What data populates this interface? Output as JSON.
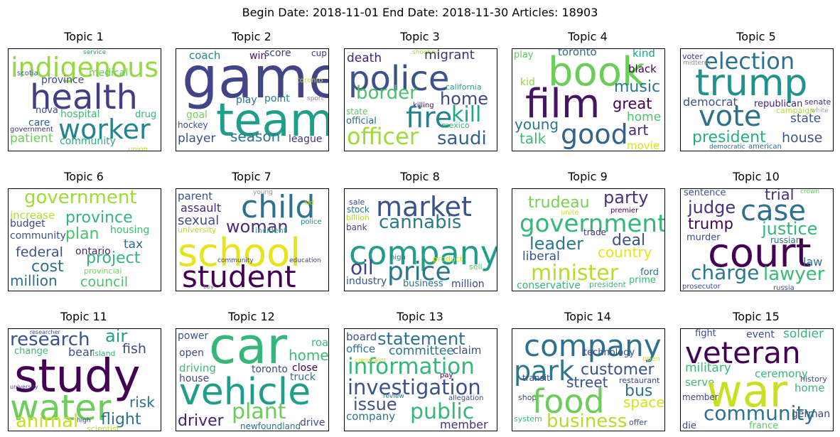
{
  "header": {
    "title": "Begin Date: 2018-11-01  End Date: 2018-11-30  Articles: 18903"
  },
  "topics": [
    {
      "title": "Topic 1",
      "words": [
        {
          "t": "service",
          "c": "#3b9a8a"
        },
        {
          "t": "indigenous",
          "c": "#95d840"
        },
        {
          "t": "scotia",
          "c": "#33638d"
        },
        {
          "t": "province",
          "c": "#3e4a89"
        },
        {
          "t": "medical",
          "c": "#6ccd5a"
        },
        {
          "t": "health",
          "c": "#433e85"
        },
        {
          "t": "nova",
          "c": "#3e4c8a"
        },
        {
          "t": "care",
          "c": "#34608d"
        },
        {
          "t": "hospital",
          "c": "#3fbc73"
        },
        {
          "t": "drug",
          "c": "#35b779"
        },
        {
          "t": "worker",
          "c": "#25858e"
        },
        {
          "t": "government",
          "c": "#46337f"
        },
        {
          "t": "patient",
          "c": "#6ccd5a"
        },
        {
          "t": "community",
          "c": "#27ad81"
        },
        {
          "t": "union",
          "c": "#b5de2b"
        }
      ]
    },
    {
      "title": "Topic 2",
      "words": [
        {
          "t": "coach",
          "c": "#25858e"
        },
        {
          "t": "win",
          "c": "#471365"
        },
        {
          "t": "score",
          "c": "#443983"
        },
        {
          "t": "cup",
          "c": "#453581"
        },
        {
          "t": "game",
          "c": "#414487"
        },
        {
          "t": "toronto",
          "c": "#c8e020"
        },
        {
          "t": "play",
          "c": "#2c738e"
        },
        {
          "t": "point",
          "c": "#287c8e"
        },
        {
          "t": "sport",
          "c": "#8f7f9f"
        },
        {
          "t": "team",
          "c": "#1f9e89"
        },
        {
          "t": "goal",
          "c": "#7ad151"
        },
        {
          "t": "hockey",
          "c": "#3b528b"
        },
        {
          "t": "player",
          "c": "#3b528b"
        },
        {
          "t": "season",
          "c": "#2a788e"
        },
        {
          "t": "league",
          "c": "#46327e"
        }
      ]
    },
    {
      "title": "Topic 3",
      "words": [
        {
          "t": "shooting",
          "c": "#a0da39"
        },
        {
          "t": "death",
          "c": "#482173"
        },
        {
          "t": "migrant",
          "c": "#472d7b"
        },
        {
          "t": "police",
          "c": "#3b528b"
        },
        {
          "t": "home",
          "c": "#3e4989"
        },
        {
          "t": "border",
          "c": "#4ac16d"
        },
        {
          "t": "california",
          "c": "#20a386"
        },
        {
          "t": "killing",
          "c": "#46085c"
        },
        {
          "t": "fire",
          "c": "#25848e"
        },
        {
          "t": "kill",
          "c": "#22a884"
        },
        {
          "t": "state",
          "c": "#5ec962"
        },
        {
          "t": "official",
          "c": "#2e6e8e"
        },
        {
          "t": "mexico",
          "c": "#35b779"
        },
        {
          "t": "officer",
          "c": "#a0da39"
        },
        {
          "t": "saudi",
          "c": "#34618d"
        }
      ]
    },
    {
      "title": "Topic 4",
      "words": [
        {
          "t": "play",
          "c": "#5ec962"
        },
        {
          "t": "toronto",
          "c": "#31688e"
        },
        {
          "t": "kind",
          "c": "#20a386"
        },
        {
          "t": "book",
          "c": "#6ccd5a"
        },
        {
          "t": "black",
          "c": "#440154"
        },
        {
          "t": "kid",
          "c": "#8fd744"
        },
        {
          "t": "music",
          "c": "#2a788e"
        },
        {
          "t": "film",
          "c": "#471365"
        },
        {
          "t": "great",
          "c": "#440154"
        },
        {
          "t": "home",
          "c": "#4ac16d"
        },
        {
          "t": "young",
          "c": "#2a788e"
        },
        {
          "t": "good",
          "c": "#33638d"
        },
        {
          "t": "talk",
          "c": "#3bbb75"
        },
        {
          "t": "art",
          "c": "#482878"
        },
        {
          "t": "movie",
          "c": "#d8e219"
        }
      ]
    },
    {
      "title": "Topic 5",
      "words": [
        {
          "t": "voter",
          "c": "#46327e"
        },
        {
          "t": "election",
          "c": "#2c728e"
        },
        {
          "t": "midterm",
          "c": "#8f8f8f"
        },
        {
          "t": "trump",
          "c": "#21918c"
        },
        {
          "t": "vote",
          "c": "#2c728e"
        },
        {
          "t": "democrat",
          "c": "#3b528b"
        },
        {
          "t": "republican",
          "c": "#482576"
        },
        {
          "t": "senate",
          "c": "#482576"
        },
        {
          "t": "white",
          "c": "#a6a6a6"
        },
        {
          "t": "state",
          "c": "#3b528b"
        },
        {
          "t": "campaign",
          "c": "#b5de2b"
        },
        {
          "t": "president",
          "c": "#27ad81"
        },
        {
          "t": "house",
          "c": "#3b528b"
        },
        {
          "t": "democratic",
          "c": "#2c728e"
        },
        {
          "t": "american",
          "c": "#31688e"
        }
      ]
    },
    {
      "title": "Topic 6",
      "words": [
        {
          "t": "government",
          "c": "#a0da39"
        },
        {
          "t": "increase",
          "c": "#b5de2b"
        },
        {
          "t": "province",
          "c": "#32b67a"
        },
        {
          "t": "budget",
          "c": "#3e4989"
        },
        {
          "t": "housing",
          "c": "#3bbb75"
        },
        {
          "t": "plan",
          "c": "#4ac16d"
        },
        {
          "t": "community",
          "c": "#3b528b"
        },
        {
          "t": "tax",
          "c": "#30698e"
        },
        {
          "t": "federal",
          "c": "#3b528b"
        },
        {
          "t": "ontario",
          "c": "#482173"
        },
        {
          "t": "project",
          "c": "#32b67a"
        },
        {
          "t": "cost",
          "c": "#2c728e"
        },
        {
          "t": "provincial",
          "c": "#7ad151"
        },
        {
          "t": "million",
          "c": "#2e6e8e"
        },
        {
          "t": "council",
          "c": "#4ac16d"
        }
      ]
    },
    {
      "title": "Topic 7",
      "words": [
        {
          "t": "young",
          "c": "#8f8f8f"
        },
        {
          "t": "parent",
          "c": "#3b528b"
        },
        {
          "t": "child",
          "c": "#2c728e"
        },
        {
          "t": "kid",
          "c": "#c8e020"
        },
        {
          "t": "assault",
          "c": "#482878"
        },
        {
          "t": "sexual",
          "c": "#3e4c8a"
        },
        {
          "t": "woman",
          "c": "#472d7b"
        },
        {
          "t": "police",
          "c": "#25858e"
        },
        {
          "t": "university",
          "c": "#b5de2b"
        },
        {
          "t": "incident",
          "c": "#27ad81"
        },
        {
          "t": "school",
          "c": "#e7e419"
        },
        {
          "t": "community",
          "c": "#3e4989"
        },
        {
          "t": "education",
          "c": "#3e4989"
        },
        {
          "t": "student",
          "c": "#440154"
        },
        {
          "t": "boy",
          "c": "#8f7f9f"
        }
      ]
    },
    {
      "title": "Topic 8",
      "words": [
        {
          "t": "market",
          "c": "#3b528b"
        },
        {
          "t": "sale",
          "c": "#3e4989"
        },
        {
          "t": "stock",
          "c": "#2c728e"
        },
        {
          "t": "cannabis",
          "c": "#2a788e"
        },
        {
          "t": "billion",
          "c": "#b5de2b"
        },
        {
          "t": "bank",
          "c": "#3e4989"
        },
        {
          "t": "company",
          "c": "#1f9e89"
        },
        {
          "t": "high",
          "c": "#2c728e"
        },
        {
          "t": "product",
          "c": "#d8e219"
        },
        {
          "t": "oil",
          "c": "#414487"
        },
        {
          "t": "price",
          "c": "#2a788e"
        },
        {
          "t": "sell",
          "c": "#5ec962"
        },
        {
          "t": "industry",
          "c": "#3b528b"
        },
        {
          "t": "business",
          "c": "#2c728e"
        },
        {
          "t": "million",
          "c": "#3e4989"
        }
      ]
    },
    {
      "title": "Topic 9",
      "words": [
        {
          "t": "trudeau",
          "c": "#7ad151"
        },
        {
          "t": "party",
          "c": "#46327e"
        },
        {
          "t": "premier",
          "c": "#440154"
        },
        {
          "t": "unite",
          "c": "#c8e020"
        },
        {
          "t": "government",
          "c": "#35b779"
        },
        {
          "t": "trade",
          "c": "#46327e"
        },
        {
          "t": "deal",
          "c": "#3b528b"
        },
        {
          "t": "leader",
          "c": "#2a788e"
        },
        {
          "t": "country",
          "c": "#e7e419"
        },
        {
          "t": "liberal",
          "c": "#3b528b"
        },
        {
          "t": "minister",
          "c": "#b5de2b"
        },
        {
          "t": "ford",
          "c": "#2c728e"
        },
        {
          "t": "prime",
          "c": "#3bbb75"
        },
        {
          "t": "conservative",
          "c": "#35b779"
        },
        {
          "t": "president",
          "c": "#3bbb75"
        }
      ]
    },
    {
      "title": "Topic 10",
      "words": [
        {
          "t": "sentence",
          "c": "#3b528b"
        },
        {
          "t": "trial",
          "c": "#46327e"
        },
        {
          "t": "crown",
          "c": "#5ec962"
        },
        {
          "t": "judge",
          "c": "#46327e"
        },
        {
          "t": "case",
          "c": "#2c728e"
        },
        {
          "t": "trump",
          "c": "#440154"
        },
        {
          "t": "justice",
          "c": "#35b779"
        },
        {
          "t": "murder",
          "c": "#3e4c8a"
        },
        {
          "t": "russian",
          "c": "#2c728e"
        },
        {
          "t": "court",
          "c": "#440154"
        },
        {
          "t": "law",
          "c": "#2c728e"
        },
        {
          "t": "charge",
          "c": "#2a788e"
        },
        {
          "t": "lawyer",
          "c": "#3bbb75"
        },
        {
          "t": "prosecutor",
          "c": "#3e4989"
        },
        {
          "t": "russia",
          "c": "#3e4c8a"
        }
      ]
    },
    {
      "title": "Topic 11",
      "words": [
        {
          "t": "researcher",
          "c": "#3e4989"
        },
        {
          "t": "research",
          "c": "#3b528b"
        },
        {
          "t": "air",
          "c": "#1f9e89"
        },
        {
          "t": "change",
          "c": "#3bbb75"
        },
        {
          "t": "bear",
          "c": "#3b528b"
        },
        {
          "t": "island",
          "c": "#35b779"
        },
        {
          "t": "fish",
          "c": "#3e4989"
        },
        {
          "t": "study",
          "c": "#440154"
        },
        {
          "t": "university",
          "c": "#3e4989"
        },
        {
          "t": "water",
          "c": "#6ccd5a"
        },
        {
          "t": "risk",
          "c": "#2c728e"
        },
        {
          "t": "animal",
          "c": "#c8e020"
        },
        {
          "t": "high",
          "c": "#3e4989"
        },
        {
          "t": "flight",
          "c": "#2c728e"
        },
        {
          "t": "scientist",
          "c": "#b5de2b"
        }
      ]
    },
    {
      "title": "Topic 12",
      "words": [
        {
          "t": "power",
          "c": "#3b528b"
        },
        {
          "t": "car",
          "c": "#35b779"
        },
        {
          "t": "road",
          "c": "#3bbb75"
        },
        {
          "t": "open",
          "c": "#3e4989"
        },
        {
          "t": "home",
          "c": "#3bbb75"
        },
        {
          "t": "driving",
          "c": "#3bbb75"
        },
        {
          "t": "toronto",
          "c": "#3e4989"
        },
        {
          "t": "close",
          "c": "#440154"
        },
        {
          "t": "house",
          "c": "#3e4989"
        },
        {
          "t": "truck",
          "c": "#2c728e"
        },
        {
          "t": "vehicle",
          "c": "#1f9e89"
        },
        {
          "t": "driver",
          "c": "#482173"
        },
        {
          "t": "plant",
          "c": "#6ccd5a"
        },
        {
          "t": "newfoundland",
          "c": "#2c728e"
        },
        {
          "t": "drive",
          "c": "#3e4989"
        }
      ]
    },
    {
      "title": "Topic 13",
      "words": [
        {
          "t": "board",
          "c": "#3b528b"
        },
        {
          "t": "statement",
          "c": "#2c728e"
        },
        {
          "t": "office",
          "c": "#2c728e"
        },
        {
          "t": "committee",
          "c": "#2c728e"
        },
        {
          "t": "claim",
          "c": "#3e4989"
        },
        {
          "t": "information",
          "c": "#35b779"
        },
        {
          "t": "complaint",
          "c": "#c8e020"
        },
        {
          "t": "pay",
          "c": "#440154"
        },
        {
          "t": "investigation",
          "c": "#3b528b"
        },
        {
          "t": "review",
          "c": "#2c728e"
        },
        {
          "t": "allegation",
          "c": "#3e4989"
        },
        {
          "t": "issue",
          "c": "#3b528b"
        },
        {
          "t": "public",
          "c": "#35b779"
        },
        {
          "t": "company",
          "c": "#2c728e"
        },
        {
          "t": "member",
          "c": "#46327e"
        }
      ]
    },
    {
      "title": "Topic 14",
      "words": [
        {
          "t": "company",
          "c": "#2c728e"
        },
        {
          "t": "technology",
          "c": "#3e4989"
        },
        {
          "t": "park",
          "c": "#2a788e"
        },
        {
          "t": "open",
          "c": "#d8e219"
        },
        {
          "t": "customer",
          "c": "#3b528b"
        },
        {
          "t": "transit",
          "c": "#3e4989"
        },
        {
          "t": "street",
          "c": "#3b528b"
        },
        {
          "t": "restaurant",
          "c": "#3e4989"
        },
        {
          "t": "shop",
          "c": "#3e4989"
        },
        {
          "t": "food",
          "c": "#6ccd5a"
        },
        {
          "t": "bus",
          "c": "#2c728e"
        },
        {
          "t": "space",
          "c": "#d8e219"
        },
        {
          "t": "system",
          "c": "#3bbb75"
        },
        {
          "t": "business",
          "c": "#b5de2b"
        },
        {
          "t": "offer",
          "c": "#3e4989"
        }
      ]
    },
    {
      "title": "Topic 15",
      "words": [
        {
          "t": "fight",
          "c": "#3e4989"
        },
        {
          "t": "event",
          "c": "#3b528b"
        },
        {
          "t": "soldier",
          "c": "#35b779"
        },
        {
          "t": "veteran",
          "c": "#440154"
        },
        {
          "t": "military",
          "c": "#3bbb75"
        },
        {
          "t": "ceremony",
          "c": "#35b779"
        },
        {
          "t": "history",
          "c": "#3e4989"
        },
        {
          "t": "serve",
          "c": "#3bbb75"
        },
        {
          "t": "war",
          "c": "#c8e020"
        },
        {
          "t": "home",
          "c": "#35b779"
        },
        {
          "t": "member",
          "c": "#3e4989"
        },
        {
          "t": "german",
          "c": "#3e4989"
        },
        {
          "t": "community",
          "c": "#2c728e"
        },
        {
          "t": "die",
          "c": "#3e4989"
        },
        {
          "t": "france",
          "c": "#5ec962"
        }
      ]
    }
  ]
}
